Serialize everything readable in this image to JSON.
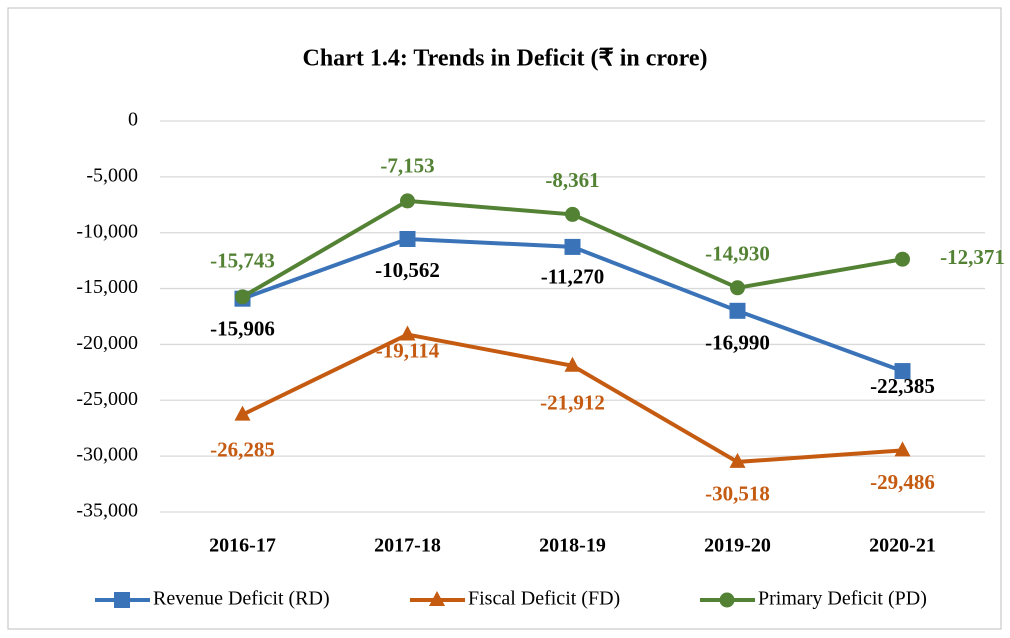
{
  "chart_data": {
    "type": "line",
    "title": "Chart 1.4: Trends in Deficit (₹ in crore)",
    "categories": [
      "2016-17",
      "2017-18",
      "2018-19",
      "2019-20",
      "2020-21"
    ],
    "series": [
      {
        "name": "Revenue Deficit (RD)",
        "color": "#3a73b8",
        "marker": "square",
        "values": [
          -15906,
          -10562,
          -11270,
          -16990,
          -22385
        ],
        "value_labels": [
          "-15,906",
          "-10,562",
          "-11,270",
          "-16,990",
          "-22,385"
        ]
      },
      {
        "name": "Fiscal Deficit (FD)",
        "color": "#c55a11",
        "marker": "triangle",
        "values": [
          -26285,
          -19114,
          -21912,
          -30518,
          -29486
        ],
        "value_labels": [
          "-26,285",
          "-19,114",
          "-21,912",
          "-30,518",
          "-29,486"
        ]
      },
      {
        "name": "Primary Deficit (PD)",
        "color": "#548235",
        "marker": "circle",
        "values": [
          -15743,
          -7153,
          -8361,
          -14930,
          -12371
        ],
        "value_labels": [
          "-15,743",
          "-7,153",
          "-8,361",
          "-14,930",
          "-12,371"
        ]
      }
    ],
    "ylim": [
      -35000,
      0
    ],
    "yticks": [
      0,
      {
        "value": -5000,
        "label": "-5,000"
      },
      {
        "value": -10000,
        "label": "-10,000"
      },
      {
        "value": -15000,
        "label": "-15,000"
      },
      {
        "value": -20000,
        "label": "-20,000"
      },
      {
        "value": -25000,
        "label": "-25,000"
      },
      {
        "value": -30000,
        "label": "-30,000"
      },
      {
        "value": -35000,
        "label": "-35,000"
      }
    ],
    "grid": true,
    "legend": "bottom"
  }
}
